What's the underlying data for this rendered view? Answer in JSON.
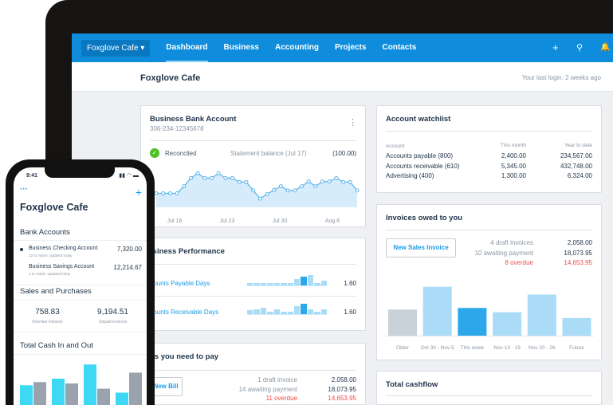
{
  "nav": {
    "org": "Foxglove Cafe",
    "items": [
      "Dashboard",
      "Business",
      "Accounting",
      "Projects",
      "Contacts"
    ],
    "active": "Dashboard",
    "icons": [
      "plus-icon",
      "search-icon",
      "bell-icon"
    ],
    "color": "#0f8ddc"
  },
  "header": {
    "title": "Foxglove Cafe",
    "last_login": "Your last login: 2 weeks ago"
  },
  "bank": {
    "title": "Business Bank Account",
    "number": "306-234-12345678",
    "status": "Reconciled",
    "statement_label": "Statement balance (Jul 17)",
    "statement_value": "(100.00)"
  },
  "watchlist": {
    "title": "Account watchlist",
    "headers": [
      "Account",
      "This month",
      "Year to date"
    ],
    "rows": [
      [
        "Accounts payable (800)",
        "2,400.00",
        "234,567.00"
      ],
      [
        "Accounts receivable (610)",
        "5,345.00",
        "432,748.00"
      ],
      [
        "Advertising (400)",
        "1,300.00",
        "6,324.00"
      ]
    ]
  },
  "performance": {
    "title": "Business Performance",
    "rows": [
      {
        "label": "Accounts Payable Days",
        "value": "1.60",
        "bars": [
          2,
          2,
          2,
          2,
          2,
          2,
          2,
          5,
          7,
          8,
          2,
          4
        ],
        "highlight": 8
      },
      {
        "label": "Accounts Receivable Days",
        "value": "1.60",
        "bars": [
          3,
          4,
          5,
          2,
          4,
          2,
          2,
          6,
          8,
          4,
          2,
          4
        ],
        "highlight": 8
      }
    ]
  },
  "invoices": {
    "title": "Invoices owed to you",
    "button": "New Sales Invoice",
    "summary": [
      {
        "label": "4 draft invoices",
        "value": "2,058.00"
      },
      {
        "label": "10 awaiting payment",
        "value": "18,073.95"
      },
      {
        "label": "8 overdue",
        "value": "14,653.95",
        "overdue": true
      }
    ]
  },
  "bills": {
    "title": "Bills you need to pay",
    "button": "New Bill",
    "summary": [
      {
        "label": "1 draft invoice",
        "value": "2,058.00"
      },
      {
        "label": "14 awaiting payment",
        "value": "18,073.95"
      },
      {
        "label": "11 overdue",
        "value": "14,653.95",
        "overdue": true
      }
    ]
  },
  "cashflow": {
    "title": "Total cashflow"
  },
  "chart_data": [
    {
      "type": "area",
      "x_ticks": [
        "Jul 16",
        "Jul 23",
        "Jul 30",
        "Aug 6"
      ],
      "values": [
        53,
        53,
        53,
        53,
        80,
        111,
        129,
        111,
        111,
        129,
        111,
        111,
        96,
        96,
        64,
        33,
        50,
        66,
        80,
        64,
        64,
        80,
        98,
        80,
        98,
        98,
        111,
        96,
        96,
        64
      ],
      "color": "#5ab4ea",
      "grid": false
    },
    {
      "type": "bar",
      "categories": [
        "Older",
        "Oct 30 - Nov 5",
        "This week",
        "Nov 13 - 19",
        "Nov 20 - 26",
        "Future"
      ],
      "values": [
        117,
        219,
        124,
        105,
        184,
        79
      ],
      "colors": [
        "#c9d1d9",
        "#aadcf7",
        "#2ba7ea",
        "#aadcf7",
        "#aadcf7",
        "#aadcf7"
      ]
    },
    {
      "type": "bar",
      "series": [
        {
          "values": [
            75,
            100,
            154,
            47
          ],
          "color": "#3dd8f3"
        },
        {
          "values": [
            87,
            82,
            62,
            123
          ],
          "color": "#9aa3ad"
        }
      ]
    }
  ],
  "phone": {
    "time": "9:41",
    "title": "Foxglove Cafe",
    "bank_title": "Bank Accounts",
    "accounts": [
      {
        "name": "Business Checking Account",
        "sub": "12 to match, updated today",
        "value": "7,320.00"
      },
      {
        "name": "Business Savings Account",
        "sub": "4 to match, updated today",
        "value": "12,214.67"
      }
    ],
    "sales_title": "Sales and Purchases",
    "stats": [
      {
        "value": "758.83",
        "label": "Overdue invoices"
      },
      {
        "value": "9,194.51",
        "label": "Unpaid invoices"
      }
    ],
    "cash_title": "Total Cash In and Out"
  }
}
